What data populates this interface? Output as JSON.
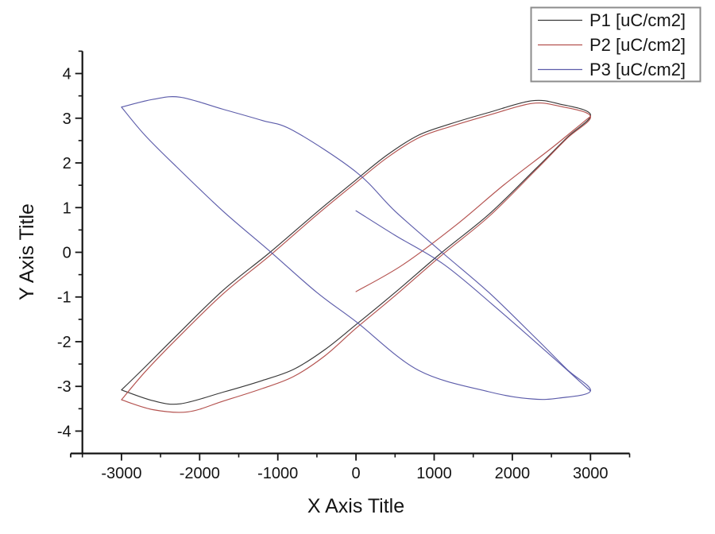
{
  "chart_data": {
    "type": "line",
    "title": "",
    "xlabel": "X Axis Title",
    "ylabel": "Y Axis Title",
    "xlim": [
      -3500,
      3500
    ],
    "ylim": [
      -4.5,
      4.5
    ],
    "x_major_ticks": [
      -3000,
      -2000,
      -1000,
      0,
      1000,
      2000,
      3000
    ],
    "x_minor_step": 500,
    "y_major_ticks": [
      -4,
      -3,
      -2,
      -1,
      0,
      1,
      2,
      3,
      4
    ],
    "y_minor_step": 0.5,
    "grid": false,
    "background": "#ffffff",
    "axis_color": "#141414",
    "legend": {
      "position": "top-right",
      "border_color": "#8c8c8c",
      "entries": [
        "P1 [uC/cm2]",
        "P2 [uC/cm2]",
        "P3 [uC/cm2]"
      ]
    },
    "series": [
      {
        "name": "P1 [uC/cm2]",
        "color": "#383838",
        "description": "hysteresis loop, positive slope, tips at (-3000,-3.08) and (3000,3.08)",
        "paths": [
          [
            [
              -3000,
              -3.08
            ],
            [
              -2600,
              -3.32
            ],
            [
              -2250,
              -3.39
            ],
            [
              -1700,
              -3.13
            ],
            [
              -1200,
              -2.87
            ],
            [
              -800,
              -2.62
            ],
            [
              -400,
              -2.18
            ],
            [
              0,
              -1.62
            ],
            [
              500,
              -0.9
            ],
            [
              1100,
              0
            ],
            [
              1700,
              0.85
            ],
            [
              2300,
              1.87
            ],
            [
              2700,
              2.57
            ],
            [
              3000,
              3.08
            ],
            [
              2600,
              3.32
            ],
            [
              2250,
              3.39
            ],
            [
              1700,
              3.13
            ],
            [
              1200,
              2.87
            ],
            [
              800,
              2.62
            ],
            [
              400,
              2.18
            ],
            [
              0,
              1.62
            ],
            [
              -500,
              0.9
            ],
            [
              -1100,
              0
            ],
            [
              -1700,
              -0.85
            ],
            [
              -2300,
              -1.87
            ],
            [
              -2700,
              -2.57
            ],
            [
              -3000,
              -3.08
            ]
          ]
        ]
      },
      {
        "name": "P2 [uC/cm2]",
        "color": "#b4524f",
        "description": "hysteresis loop with virgin branch starting at (0,-0.88), tips at (-3000,-3.3) and (3000,3.04), minimum -3.57",
        "paths": [
          [
            [
              -3000,
              -3.3
            ],
            [
              -2600,
              -3.52
            ],
            [
              -2150,
              -3.57
            ],
            [
              -1700,
              -3.33
            ],
            [
              -1200,
              -3.05
            ],
            [
              -800,
              -2.78
            ],
            [
              -400,
              -2.32
            ],
            [
              0,
              -1.7
            ],
            [
              500,
              -0.97
            ],
            [
              1100,
              -0.06
            ],
            [
              1700,
              0.8
            ],
            [
              2300,
              1.84
            ],
            [
              2700,
              2.55
            ],
            [
              3000,
              3.04
            ],
            [
              2600,
              3.27
            ],
            [
              2250,
              3.33
            ],
            [
              1700,
              3.07
            ],
            [
              1200,
              2.81
            ],
            [
              800,
              2.56
            ],
            [
              400,
              2.12
            ],
            [
              0,
              1.56
            ],
            [
              -500,
              0.84
            ],
            [
              -1100,
              -0.07
            ],
            [
              -1700,
              -0.93
            ],
            [
              -2300,
              -1.95
            ],
            [
              -2700,
              -2.68
            ],
            [
              -3000,
              -3.3
            ]
          ],
          [
            [
              0,
              -0.88
            ],
            [
              600,
              -0.28
            ],
            [
              1280,
              0.61
            ],
            [
              1900,
              1.52
            ],
            [
              2500,
              2.33
            ],
            [
              2900,
              2.9
            ],
            [
              3000,
              3.04
            ]
          ]
        ]
      },
      {
        "name": "P3 [uC/cm2]",
        "color": "#5c5caa",
        "description": "mirrored hysteresis loop with virgin branch starting at (0,0.93), tips at (-3000,3.25) and (3000,-3.1), maximum 3.47",
        "paths": [
          [
            [
              -3000,
              3.25
            ],
            [
              -2700,
              2.62
            ],
            [
              -2300,
              1.92
            ],
            [
              -1700,
              0.92
            ],
            [
              -1100,
              0.02
            ],
            [
              -500,
              -0.9
            ],
            [
              0,
              -1.55
            ],
            [
              800,
              -2.64
            ],
            [
              1700,
              -3.12
            ],
            [
              2250,
              -3.28
            ],
            [
              2600,
              -3.26
            ],
            [
              3000,
              -3.1
            ],
            [
              2700,
              -2.62
            ],
            [
              2300,
              -1.92
            ],
            [
              1700,
              -0.9
            ],
            [
              1100,
              0
            ],
            [
              500,
              0.92
            ],
            [
              0,
              1.8
            ],
            [
              -800,
              2.72
            ],
            [
              -1200,
              2.95
            ],
            [
              -1700,
              3.2
            ],
            [
              -2250,
              3.47
            ],
            [
              -2600,
              3.42
            ],
            [
              -3000,
              3.25
            ]
          ],
          [
            [
              0,
              0.93
            ],
            [
              500,
              0.38
            ],
            [
              1130,
              -0.28
            ],
            [
              1800,
              -1.25
            ],
            [
              2550,
              -2.4
            ],
            [
              2900,
              -2.95
            ],
            [
              3000,
              -3.1
            ]
          ]
        ]
      }
    ]
  }
}
